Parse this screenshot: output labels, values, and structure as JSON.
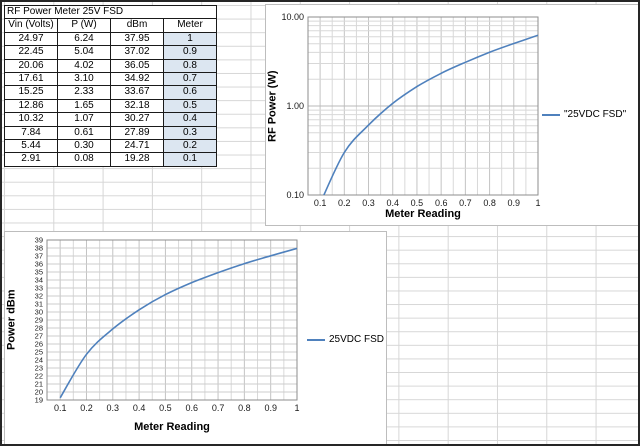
{
  "table": {
    "title": "RF Power Meter 25V FSD",
    "columns": [
      "Vin (Volts)",
      "P (W)",
      "dBm",
      "Meter"
    ],
    "rows": [
      [
        "24.97",
        "6.24",
        "37.95",
        "1"
      ],
      [
        "22.45",
        "5.04",
        "37.02",
        "0.9"
      ],
      [
        "20.06",
        "4.02",
        "36.05",
        "0.8"
      ],
      [
        "17.61",
        "3.10",
        "34.92",
        "0.7"
      ],
      [
        "15.25",
        "2.33",
        "33.67",
        "0.6"
      ],
      [
        "12.86",
        "1.65",
        "32.18",
        "0.5"
      ],
      [
        "10.32",
        "1.07",
        "30.27",
        "0.4"
      ],
      [
        "7.84",
        "0.61",
        "27.89",
        "0.3"
      ],
      [
        "5.44",
        "0.30",
        "24.71",
        "0.2"
      ],
      [
        "2.91",
        "0.08",
        "19.28",
        "0.1"
      ]
    ],
    "highlight_color": "#dce6f1"
  },
  "chart_data": [
    {
      "type": "line",
      "x": [
        0.1,
        0.2,
        0.3,
        0.4,
        0.5,
        0.6,
        0.7,
        0.8,
        0.9,
        1.0
      ],
      "series": [
        {
          "name": "\"25VDC FSD\"",
          "values": [
            0.08,
            0.3,
            0.61,
            1.07,
            1.65,
            2.33,
            3.1,
            4.02,
            5.04,
            6.24
          ]
        }
      ],
      "xlabel": "Meter Reading",
      "ylabel": "RF Power (W)",
      "legend": "\"25VDC FSD\"",
      "legend_position": "right",
      "color": "#4F81BD",
      "y_scale": "log",
      "ylim": [
        0.1,
        10
      ],
      "xlim": [
        0.05,
        1.0
      ],
      "x_ticks": [
        "0.1",
        "0.2",
        "0.3",
        "0.4",
        "0.5",
        "0.6",
        "0.7",
        "0.8",
        "0.9",
        "1"
      ],
      "y_ticks": [
        "10.00",
        "1.00",
        "0.10"
      ],
      "grid": true
    },
    {
      "type": "line",
      "x": [
        0.1,
        0.2,
        0.3,
        0.4,
        0.5,
        0.6,
        0.7,
        0.8,
        0.9,
        1.0
      ],
      "series": [
        {
          "name": "25VDC FSD",
          "values": [
            19.28,
            24.71,
            27.89,
            30.27,
            32.18,
            33.67,
            34.92,
            36.05,
            37.02,
            37.95
          ]
        }
      ],
      "xlabel": "Meter Reading",
      "ylabel": "Power dBm",
      "legend": "25VDC FSD",
      "legend_position": "right",
      "color": "#4F81BD",
      "y_scale": "linear",
      "ylim": [
        19,
        39
      ],
      "xlim": [
        0.05,
        1.0
      ],
      "x_ticks": [
        "0.1",
        "0.2",
        "0.3",
        "0.4",
        "0.5",
        "0.6",
        "0.7",
        "0.8",
        "0.9",
        "1"
      ],
      "y_ticks": [
        "39",
        "38",
        "37",
        "36",
        "35",
        "34",
        "33",
        "32",
        "31",
        "30",
        "29",
        "28",
        "27",
        "26",
        "25",
        "24",
        "23",
        "22",
        "21",
        "20",
        "19"
      ],
      "grid": true
    }
  ]
}
